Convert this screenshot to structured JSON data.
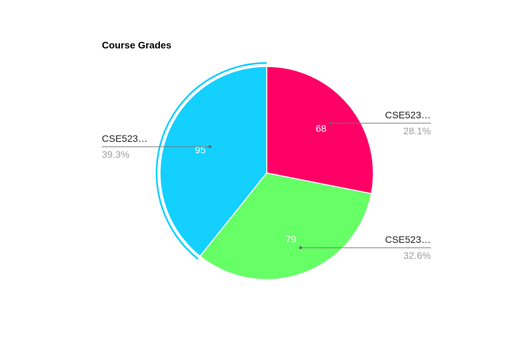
{
  "chart_data": {
    "type": "pie",
    "title": "Course Grades",
    "slices": [
      {
        "label": "CSE523…",
        "value": 68,
        "percent": "28.1%",
        "color": "#ff0066"
      },
      {
        "label": "CSE523…",
        "value": 79,
        "percent": "32.6%",
        "color": "#66ff66"
      },
      {
        "label": "CSE523…",
        "value": 95,
        "percent": "39.3%",
        "color": "#13d0ff"
      }
    ],
    "highlighted_slice": 2
  }
}
